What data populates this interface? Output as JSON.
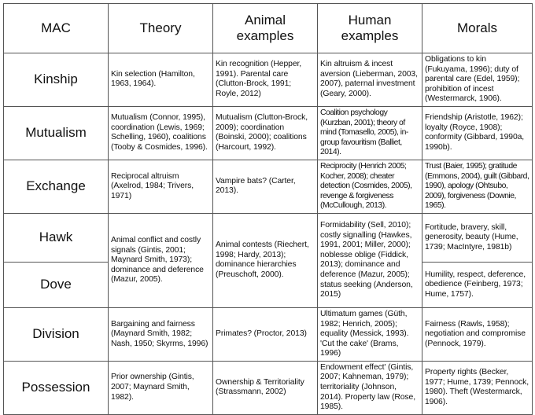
{
  "headers": [
    "MAC",
    "Theory",
    "Animal examples",
    "Human examples",
    "Morals"
  ],
  "rows": [
    {
      "mac": "Kinship",
      "theory": "Kin selection (Hamilton, 1963, 1964).",
      "animal": "Kin recognition (Hepper, 1991). Parental care (Clutton-Brock, 1991; Royle, 2012)",
      "human": "Kin altruism & incest aversion (Lieberman, 2003, 2007), paternal investment (Geary, 2000).",
      "morals": "Obligations to kin (Fukuyama, 1996); duty of parental care (Edel, 1959); prohibition of incest (Westermarck, 1906)."
    },
    {
      "mac": "Mutualism",
      "theory": "Mutualism (Connor, 1995), coordination (Lewis, 1969; Schelling, 1960), coalitions (Tooby & Cosmides, 1996).",
      "animal": "Mutualism (Clutton-Brock, 2009); coordination (Boinski, 2000); coalitions (Harcourt, 1992).",
      "human": "Coalition psychology (Kurzban, 2001); theory of mind (Tomasello, 2005), in-group favouritism (Balliet, 2014).",
      "morals": "Friendship (Aristotle, 1962); loyalty (Royce, 1908); conformity (Gibbard, 1990a, 1990b)."
    },
    {
      "mac": "Exchange",
      "theory": "Reciprocal altruism (Axelrod, 1984; Trivers, 1971)",
      "animal": "Vampire bats? (Carter, 2013).",
      "human": "Reciprocity (Henrich 2005; Kocher, 2008); cheater detection (Cosmides, 2005), revenge & forgiveness (McCullough, 2013).",
      "morals": "Trust (Baier, 1995); gratitude (Emmons, 2004), guilt (Gibbard, 1990), apology (Ohtsubo, 2009), forgiveness (Downie, 1965)."
    },
    {
      "mac": "Hawk",
      "theory": "Animal conflict and costly signals (Gintis, 2001; Maynard Smith, 1973); dominance and deference (Mazur, 2005).",
      "animal": "Animal contests (Riechert, 1998; Hardy, 2013); dominance hierarchies (Preuschoft, 2000).",
      "human": "Formidability (Sell, 2010); costly signalling (Hawkes, 1991, 2001; Miller, 2000); noblesse oblige (Fiddick, 2013); dominance and deference (Mazur, 2005); status seeking (Anderson, 2015)",
      "morals": "Fortitude, bravery, skill, generosity, beauty (Hume, 1739; MacIntyre, 1981b)"
    },
    {
      "mac": "Dove",
      "morals": "Humility, respect, deference, obedience (Feinberg, 1973; Hume, 1757)."
    },
    {
      "mac": "Division",
      "theory": "Bargaining and fairness (Maynard Smith, 1982; Nash, 1950; Skyrms, 1996)",
      "animal": "Primates? (Proctor, 2013)",
      "human": "Ultimatum games (Güth, 1982; Henrich, 2005); equality (Messick, 1993). 'Cut the cake' (Brams, 1996)",
      "morals": "Fairness (Rawls, 1958); negotiation and compromise (Pennock, 1979)."
    },
    {
      "mac": "Possession",
      "theory": "Prior ownership (Gintis, 2007; Maynard Smith, 1982).",
      "animal": "Ownership & Territoriality (Strassmann, 2002)",
      "human": "Endowment effect' (Gintis, 2007; Kahneman, 1979); territoriality (Johnson, 2014). Property law (Rose, 1985).",
      "morals": "Property rights (Becker, 1977; Hume, 1739; Pennock, 1980). Theft (Westermarck, 1906)."
    }
  ]
}
